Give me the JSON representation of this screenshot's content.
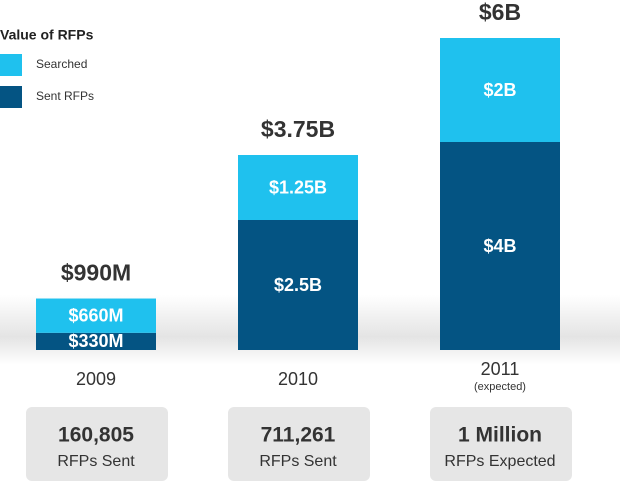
{
  "chart_data": {
    "type": "stacked-bar",
    "legend_title": "Value of RFPs",
    "categories": [
      "2009",
      "2010",
      "2011"
    ],
    "category_notes": [
      null,
      null,
      "(expected)"
    ],
    "series": [
      {
        "name": "Sent RFPs",
        "color": "#045483",
        "values": [
          330,
          2500,
          4000
        ],
        "value_labels": [
          "$330M",
          "$2.5B",
          "$4B"
        ]
      },
      {
        "name": "Searched",
        "color": "#1fc1ee",
        "values": [
          660,
          1250,
          2000
        ],
        "value_labels": [
          "$660M",
          "$1.25B",
          "$2B"
        ]
      }
    ],
    "totals": {
      "values": [
        990,
        3750,
        6000
      ],
      "value_labels": [
        "$990M",
        "$3.75B",
        "$6B"
      ]
    },
    "summary_boxes": [
      {
        "value": "160,805",
        "label": "RFPs Sent"
      },
      {
        "value": "711,261",
        "label": "RFPs Sent"
      },
      {
        "value": "1 Million",
        "label": "RFPs Expected"
      }
    ]
  }
}
